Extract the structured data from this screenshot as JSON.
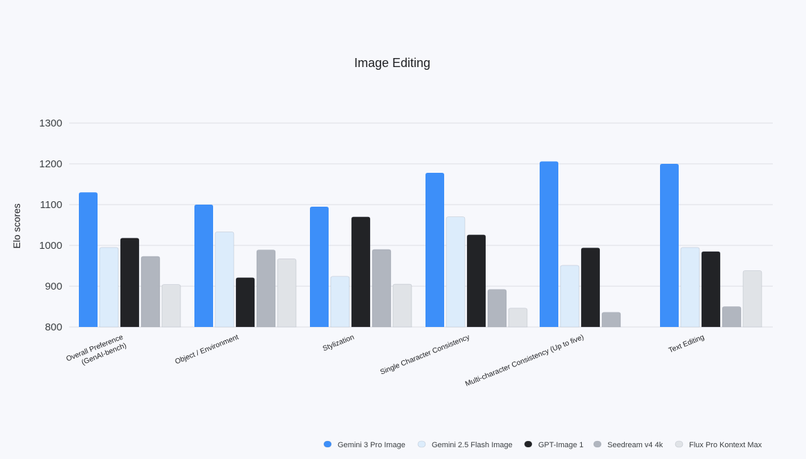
{
  "chart_data": {
    "type": "bar",
    "title": "Image Editing",
    "xlabel": "",
    "ylabel": "Elo scores",
    "ylim": [
      800,
      1300
    ],
    "yticks": [
      "800",
      "900",
      "1000",
      "1100",
      "1200",
      "1300"
    ],
    "grid": true,
    "legend_position": "bottom-right",
    "categories": [
      [
        "Overall Preference",
        "(GenAI-bench)"
      ],
      [
        "Object / Environment"
      ],
      [
        "Stylization"
      ],
      [
        "Single Character Consistency"
      ],
      [
        "Multi-character Consistency (Up to five)"
      ],
      [
        "Text Editing"
      ]
    ],
    "series": [
      {
        "name": "Gemini 3 Pro Image",
        "color": "#3d8ff9",
        "values": [
          1130,
          1100,
          1095,
          1178,
          1206,
          1200
        ]
      },
      {
        "name": "Gemini 2.5 Flash Image",
        "color": "#dcecfb",
        "values": [
          995,
          1033,
          924,
          1070,
          951,
          995
        ]
      },
      {
        "name": "GPT-Image 1",
        "color": "#222326",
        "values": [
          1018,
          921,
          1070,
          1026,
          994,
          985
        ]
      },
      {
        "name": "Seedream v4 4k",
        "color": "#b1b6bf",
        "values": [
          973,
          989,
          990,
          892,
          836,
          850
        ]
      },
      {
        "name": "Flux Pro Kontext Max",
        "color": "#e0e3e7",
        "values": [
          904,
          967,
          905,
          846,
          null,
          938
        ]
      }
    ]
  }
}
